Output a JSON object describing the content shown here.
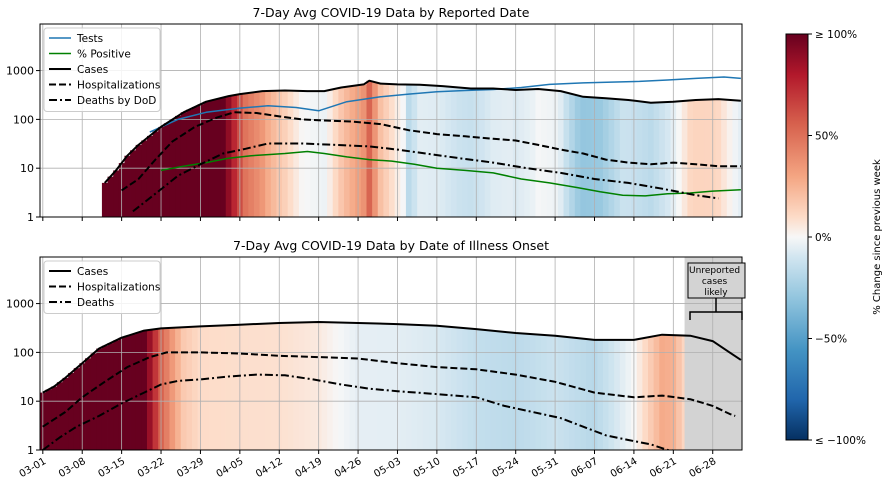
{
  "figure": {
    "colorbar": {
      "label": "% Change since previous week",
      "ticks": [
        "≥ 100%",
        "50%",
        "0%",
        "−50%",
        "≤ −100%"
      ],
      "colormap": "RdBu_r",
      "range": [
        -100,
        100
      ]
    },
    "x_tick_labels": [
      "03-01",
      "03-08",
      "03-15",
      "03-22",
      "03-29",
      "04-05",
      "04-12",
      "04-19",
      "04-26",
      "05-03",
      "05-10",
      "05-17",
      "05-24",
      "05-31",
      "06-07",
      "06-14",
      "06-21",
      "06-28"
    ],
    "y_tick_labels": [
      "1",
      "10",
      "100",
      "1000"
    ],
    "annotation": "Unreported cases likely"
  },
  "chart_data": [
    {
      "type": "line",
      "title": "7-Day Avg COVID-19 Data by Reported Date",
      "yscale": "log",
      "ylim": [
        1,
        9000
      ],
      "xlim": [
        "03-01",
        "07-03"
      ],
      "grid": true,
      "legend_position": "top-left",
      "background": "heatmap of % change since previous week of Cases",
      "series": [
        {
          "name": "Tests",
          "color": "#1f77b4",
          "style": "solid",
          "points": [
            [
              "03-20",
              55
            ],
            [
              "03-25",
              100
            ],
            [
              "03-30",
              140
            ],
            [
              "04-05",
              170
            ],
            [
              "04-10",
              190
            ],
            [
              "04-15",
              175
            ],
            [
              "04-19",
              150
            ],
            [
              "04-24",
              230
            ],
            [
              "04-30",
              290
            ],
            [
              "05-05",
              330
            ],
            [
              "05-10",
              370
            ],
            [
              "05-15",
              390
            ],
            [
              "05-20",
              410
            ],
            [
              "05-25",
              450
            ],
            [
              "05-30",
              520
            ],
            [
              "06-05",
              560
            ],
            [
              "06-10",
              580
            ],
            [
              "06-15",
              600
            ],
            [
              "06-20",
              640
            ],
            [
              "06-25",
              690
            ],
            [
              "06-30",
              740
            ],
            [
              "07-03",
              690
            ]
          ]
        },
        {
          "name": "% Positive",
          "color": "#008000",
          "style": "solid",
          "points": [
            [
              "03-22",
              9
            ],
            [
              "03-26",
              11
            ],
            [
              "03-30",
              13
            ],
            [
              "04-03",
              16
            ],
            [
              "04-07",
              18
            ],
            [
              "04-10",
              19
            ],
            [
              "04-13",
              20
            ],
            [
              "04-17",
              22
            ],
            [
              "04-20",
              20
            ],
            [
              "04-24",
              17
            ],
            [
              "04-28",
              15
            ],
            [
              "05-02",
              14
            ],
            [
              "05-06",
              12
            ],
            [
              "05-10",
              10
            ],
            [
              "05-15",
              9
            ],
            [
              "05-20",
              8
            ],
            [
              "05-25",
              6
            ],
            [
              "05-30",
              5
            ],
            [
              "06-04",
              4
            ],
            [
              "06-08",
              3.3
            ],
            [
              "06-12",
              2.8
            ],
            [
              "06-16",
              2.7
            ],
            [
              "06-20",
              3
            ],
            [
              "06-24",
              3.1
            ],
            [
              "06-28",
              3.4
            ],
            [
              "07-03",
              3.6
            ]
          ]
        },
        {
          "name": "Cases",
          "color": "#000000",
          "style": "solid",
          "points": [
            [
              "03-12",
              5
            ],
            [
              "03-14",
              9
            ],
            [
              "03-16",
              18
            ],
            [
              "03-18",
              30
            ],
            [
              "03-22",
              70
            ],
            [
              "03-26",
              140
            ],
            [
              "03-30",
              230
            ],
            [
              "04-03",
              300
            ],
            [
              "04-05",
              330
            ],
            [
              "04-09",
              380
            ],
            [
              "04-13",
              390
            ],
            [
              "04-17",
              380
            ],
            [
              "04-20",
              380
            ],
            [
              "04-23",
              450
            ],
            [
              "04-27",
              520
            ],
            [
              "04-28",
              620
            ],
            [
              "04-30",
              540
            ],
            [
              "05-03",
              520
            ],
            [
              "05-07",
              510
            ],
            [
              "05-11",
              480
            ],
            [
              "05-16",
              430
            ],
            [
              "05-20",
              430
            ],
            [
              "05-24",
              400
            ],
            [
              "05-28",
              420
            ],
            [
              "06-01",
              380
            ],
            [
              "06-05",
              290
            ],
            [
              "06-09",
              270
            ],
            [
              "06-13",
              250
            ],
            [
              "06-17",
              220
            ],
            [
              "06-21",
              230
            ],
            [
              "06-25",
              250
            ],
            [
              "06-29",
              260
            ],
            [
              "07-03",
              240
            ]
          ]
        },
        {
          "name": "Hospitalizations",
          "color": "#000000",
          "style": "dashed",
          "points": [
            [
              "03-15",
              3.5
            ],
            [
              "03-18",
              6
            ],
            [
              "03-21",
              15
            ],
            [
              "03-24",
              35
            ],
            [
              "03-28",
              70
            ],
            [
              "04-01",
              110
            ],
            [
              "04-04",
              140
            ],
            [
              "04-08",
              135
            ],
            [
              "04-12",
              115
            ],
            [
              "04-16",
              100
            ],
            [
              "04-20",
              95
            ],
            [
              "04-25",
              90
            ],
            [
              "04-30",
              80
            ],
            [
              "05-05",
              60
            ],
            [
              "05-10",
              50
            ],
            [
              "05-15",
              45
            ],
            [
              "05-20",
              40
            ],
            [
              "05-24",
              37
            ],
            [
              "05-28",
              30
            ],
            [
              "06-01",
              24
            ],
            [
              "06-05",
              20
            ],
            [
              "06-09",
              15
            ],
            [
              "06-13",
              13
            ],
            [
              "06-17",
              12
            ],
            [
              "06-21",
              13
            ],
            [
              "06-25",
              12
            ],
            [
              "06-29",
              11
            ],
            [
              "07-03",
              11
            ]
          ]
        },
        {
          "name": "Deaths by DoD",
          "color": "#000000",
          "style": "dashdot",
          "points": [
            [
              "03-17",
              1.3
            ],
            [
              "03-21",
              3
            ],
            [
              "03-25",
              7
            ],
            [
              "03-29",
              12
            ],
            [
              "04-02",
              20
            ],
            [
              "04-06",
              25
            ],
            [
              "04-10",
              32
            ],
            [
              "04-16",
              32
            ],
            [
              "04-22",
              30
            ],
            [
              "04-28",
              28
            ],
            [
              "05-03",
              24
            ],
            [
              "05-08",
              20
            ],
            [
              "05-14",
              16
            ],
            [
              "05-20",
              13
            ],
            [
              "05-26",
              10
            ],
            [
              "06-01",
              8
            ],
            [
              "06-07",
              6
            ],
            [
              "06-13",
              5
            ],
            [
              "06-19",
              3.8
            ],
            [
              "06-25",
              2.8
            ],
            [
              "06-29",
              2.4
            ]
          ]
        }
      ]
    },
    {
      "type": "line",
      "title": "7-Day Avg COVID-19 Data by Date of Illness Onset",
      "yscale": "log",
      "ylim": [
        1,
        9000
      ],
      "xlim": [
        "03-01",
        "07-03"
      ],
      "grid": true,
      "legend_position": "top-left",
      "background": "heatmap of % change since previous week of Cases",
      "shaded_region": [
        "06-23",
        "07-03"
      ],
      "series": [
        {
          "name": "Cases",
          "color": "#000000",
          "style": "solid",
          "points": [
            [
              "03-01",
              15
            ],
            [
              "03-03",
              20
            ],
            [
              "03-05",
              30
            ],
            [
              "03-08",
              60
            ],
            [
              "03-11",
              120
            ],
            [
              "03-15",
              200
            ],
            [
              "03-19",
              280
            ],
            [
              "03-22",
              310
            ],
            [
              "03-29",
              340
            ],
            [
              "04-05",
              370
            ],
            [
              "04-12",
              400
            ],
            [
              "04-19",
              420
            ],
            [
              "04-26",
              400
            ],
            [
              "05-03",
              380
            ],
            [
              "05-10",
              350
            ],
            [
              "05-17",
              300
            ],
            [
              "05-24",
              250
            ],
            [
              "05-31",
              220
            ],
            [
              "06-07",
              180
            ],
            [
              "06-14",
              180
            ],
            [
              "06-19",
              230
            ],
            [
              "06-24",
              220
            ],
            [
              "06-28",
              170
            ],
            [
              "07-01",
              100
            ],
            [
              "07-03",
              70
            ]
          ]
        },
        {
          "name": "Hospitalizations",
          "color": "#000000",
          "style": "dashed",
          "points": [
            [
              "03-01",
              3
            ],
            [
              "03-05",
              6
            ],
            [
              "03-08",
              12
            ],
            [
              "03-12",
              25
            ],
            [
              "03-16",
              50
            ],
            [
              "03-20",
              80
            ],
            [
              "03-23",
              100
            ],
            [
              "03-29",
              100
            ],
            [
              "04-05",
              95
            ],
            [
              "04-12",
              85
            ],
            [
              "04-19",
              80
            ],
            [
              "04-26",
              75
            ],
            [
              "05-03",
              60
            ],
            [
              "05-10",
              50
            ],
            [
              "05-17",
              45
            ],
            [
              "05-24",
              35
            ],
            [
              "05-31",
              25
            ],
            [
              "06-07",
              15
            ],
            [
              "06-14",
              12
            ],
            [
              "06-19",
              13
            ],
            [
              "06-24",
              11
            ],
            [
              "06-28",
              8
            ],
            [
              "07-01",
              5.5
            ],
            [
              "07-02",
              5
            ]
          ]
        },
        {
          "name": "Deaths",
          "color": "#000000",
          "style": "dashdot",
          "points": [
            [
              "03-01",
              1
            ],
            [
              "03-04",
              1.8
            ],
            [
              "03-07",
              3
            ],
            [
              "03-11",
              5
            ],
            [
              "03-15",
              9
            ],
            [
              "03-19",
              15
            ],
            [
              "03-22",
              22
            ],
            [
              "03-25",
              26
            ],
            [
              "03-29",
              28
            ],
            [
              "04-03",
              32
            ],
            [
              "04-08",
              35
            ],
            [
              "04-13",
              34
            ],
            [
              "04-18",
              28
            ],
            [
              "04-23",
              22
            ],
            [
              "04-28",
              18
            ],
            [
              "05-03",
              16
            ],
            [
              "05-10",
              14
            ],
            [
              "05-17",
              12
            ],
            [
              "05-22",
              8
            ],
            [
              "05-27",
              6
            ],
            [
              "06-01",
              4.5
            ],
            [
              "06-05",
              3
            ],
            [
              "06-09",
              2
            ],
            [
              "06-13",
              1.6
            ],
            [
              "06-17",
              1.3
            ],
            [
              "06-20",
              1.0
            ],
            [
              "06-24",
              0.9
            ]
          ]
        }
      ]
    }
  ]
}
